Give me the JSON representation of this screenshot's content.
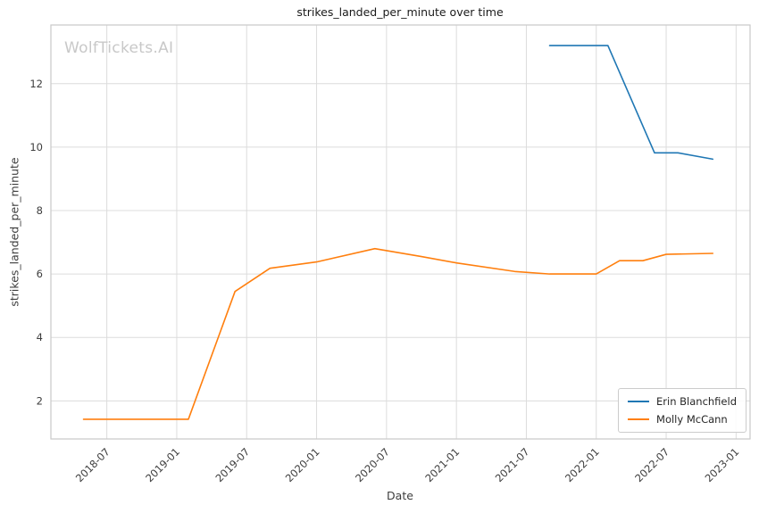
{
  "watermark": "WolfTickets.AI",
  "chart_data": {
    "type": "line",
    "title": "strikes_landed_per_minute over time",
    "xlabel": "Date",
    "ylabel": "strikes_landed_per_minute",
    "grid": true,
    "legend_position": "lower right",
    "x_ticks": [
      "2018-07",
      "2019-01",
      "2019-07",
      "2020-01",
      "2020-07",
      "2021-01",
      "2021-07",
      "2022-01",
      "2022-07",
      "2023-01"
    ],
    "y_ticks": [
      2,
      4,
      6,
      8,
      10,
      12
    ],
    "xlim": [
      2018.1,
      2023.1
    ],
    "ylim": [
      0.8,
      13.85
    ],
    "series": [
      {
        "name": "Erin Blanchfield",
        "color": "#1f77b4",
        "points": [
          [
            "2021-09",
            13.2
          ],
          [
            "2022-02",
            13.2
          ],
          [
            "2022-06",
            9.82
          ],
          [
            "2022-08",
            9.82
          ],
          [
            "2022-11",
            9.62
          ]
        ]
      },
      {
        "name": "Molly McCann",
        "color": "#ff7f0e",
        "points": [
          [
            "2018-05",
            1.42
          ],
          [
            "2018-11",
            1.42
          ],
          [
            "2019-02",
            1.42
          ],
          [
            "2019-06",
            5.45
          ],
          [
            "2019-09",
            6.18
          ],
          [
            "2020-01",
            6.38
          ],
          [
            "2020-06",
            6.8
          ],
          [
            "2020-10",
            6.55
          ],
          [
            "2021-01",
            6.35
          ],
          [
            "2021-06",
            6.08
          ],
          [
            "2021-09",
            6.0
          ],
          [
            "2022-01",
            6.0
          ],
          [
            "2022-03",
            6.42
          ],
          [
            "2022-05",
            6.42
          ],
          [
            "2022-07",
            6.62
          ],
          [
            "2022-11",
            6.65
          ]
        ]
      }
    ]
  }
}
